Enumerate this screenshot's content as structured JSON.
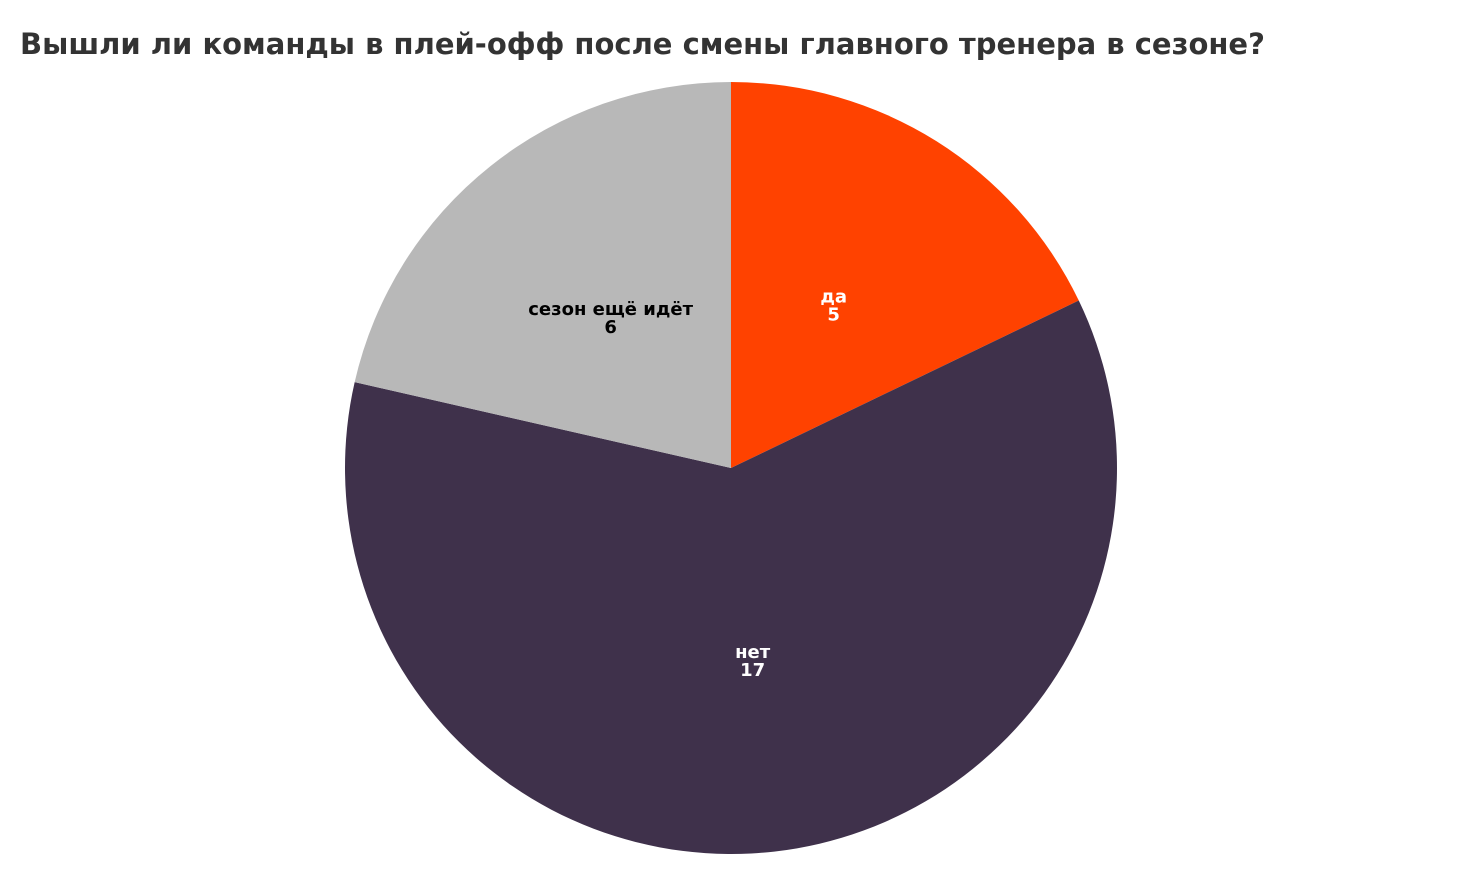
{
  "chart_data": {
    "type": "pie",
    "title": "Вышли ли команды в плей-офф после смены главного тренера в сезоне?",
    "categories": [
      "да",
      "нет",
      "сезон ещё идёт"
    ],
    "values": [
      5,
      17,
      6
    ],
    "colors": [
      "#ff4200",
      "#3f314b",
      "#b8b8b8"
    ]
  }
}
